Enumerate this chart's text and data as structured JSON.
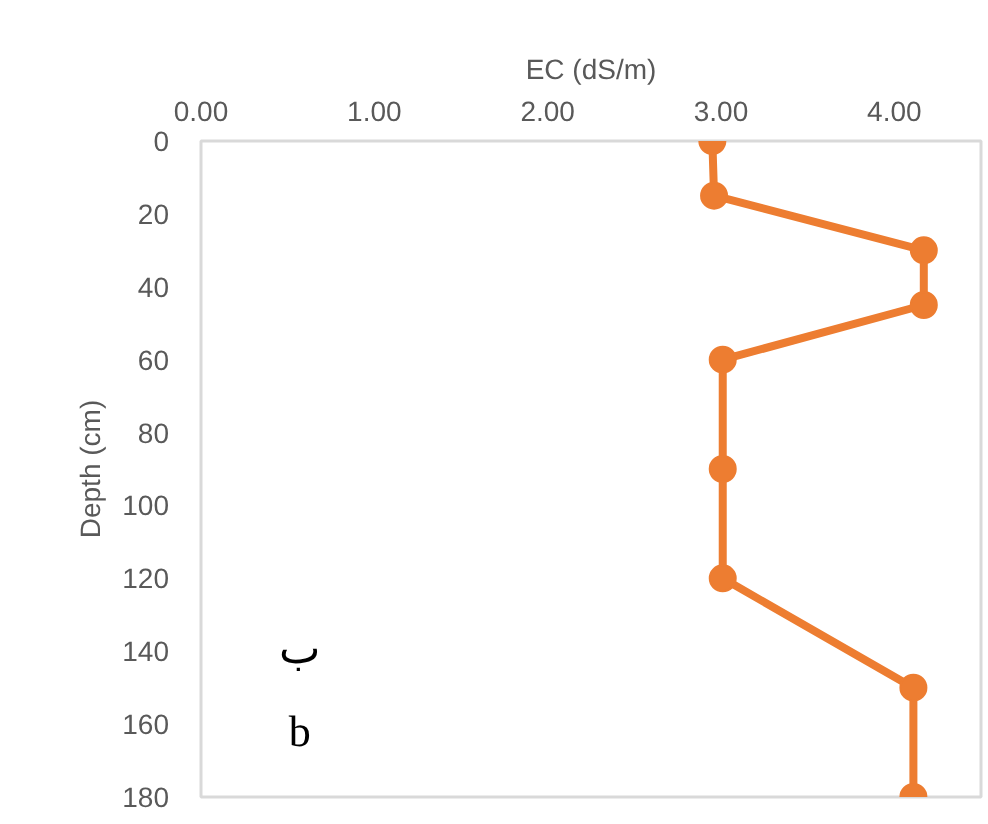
{
  "chart_data": {
    "type": "line",
    "xlabel": "EC (dS/m)",
    "ylabel": "Depth (cm)",
    "x": [
      2.95,
      2.96,
      4.17,
      4.17,
      3.01,
      3.01,
      3.01,
      4.11,
      4.11
    ],
    "series": [
      {
        "color": "#ed7d31",
        "values": [
          0,
          15,
          30,
          45,
          60,
          90,
          120,
          150,
          180
        ]
      }
    ],
    "xlim": [
      0,
      4.5
    ],
    "xticks": [
      {
        "value": 0,
        "label": "0.00"
      },
      {
        "value": 1,
        "label": "1.00"
      },
      {
        "value": 2,
        "label": "2.00"
      },
      {
        "value": 3,
        "label": "3.00"
      },
      {
        "value": 4,
        "label": "4.00"
      }
    ],
    "ylim": [
      180,
      0
    ],
    "yticks": [
      0,
      20,
      40,
      60,
      80,
      100,
      120,
      140,
      160,
      180
    ],
    "marker": "circle",
    "line_style": "solid",
    "grid": false,
    "annotations": [
      "ب",
      "b"
    ]
  }
}
